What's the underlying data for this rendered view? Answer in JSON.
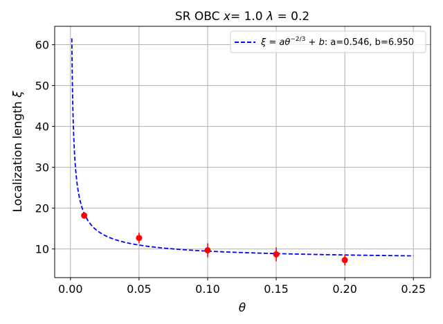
{
  "chart_data": {
    "type": "scatter",
    "title_parts": [
      "SR OBC ",
      "x",
      "= 1.0 ",
      "λ",
      " = 0.2"
    ],
    "xlabel": "θ",
    "ylabel_parts": [
      "Localization length ",
      "ξ"
    ],
    "xlim": [
      -0.0115,
      0.2625
    ],
    "ylim": [
      3.0,
      64.5
    ],
    "xticks": [
      0.0,
      0.05,
      0.1,
      0.15,
      0.2,
      0.25
    ],
    "xtick_labels": [
      "0.00",
      "0.05",
      "0.10",
      "0.15",
      "0.20",
      "0.25"
    ],
    "yticks": [
      10,
      20,
      30,
      40,
      50,
      60
    ],
    "ytick_labels": [
      "10",
      "20",
      "30",
      "40",
      "50",
      "60"
    ],
    "grid": true,
    "legend_position": "top-right",
    "legend_parts": [
      "ξ",
      " = ",
      "a",
      "θ",
      "−2/3",
      " + ",
      "b",
      ": a=0.546, b=6.950"
    ],
    "fit": {
      "a": 0.546,
      "b": 6.95,
      "x_start": 0.001,
      "x_end": 0.25,
      "color": "#0000ff",
      "style": "dashed"
    },
    "points": [
      {
        "x": 0.01,
        "y": 18.2,
        "err": 0.8
      },
      {
        "x": 0.05,
        "y": 12.7,
        "err": 1.3
      },
      {
        "x": 0.1,
        "y": 9.7,
        "err": 1.7
      },
      {
        "x": 0.15,
        "y": 8.7,
        "err": 1.7
      },
      {
        "x": 0.2,
        "y": 7.3,
        "err": 1.3
      }
    ],
    "point_color": "#ff0000"
  }
}
